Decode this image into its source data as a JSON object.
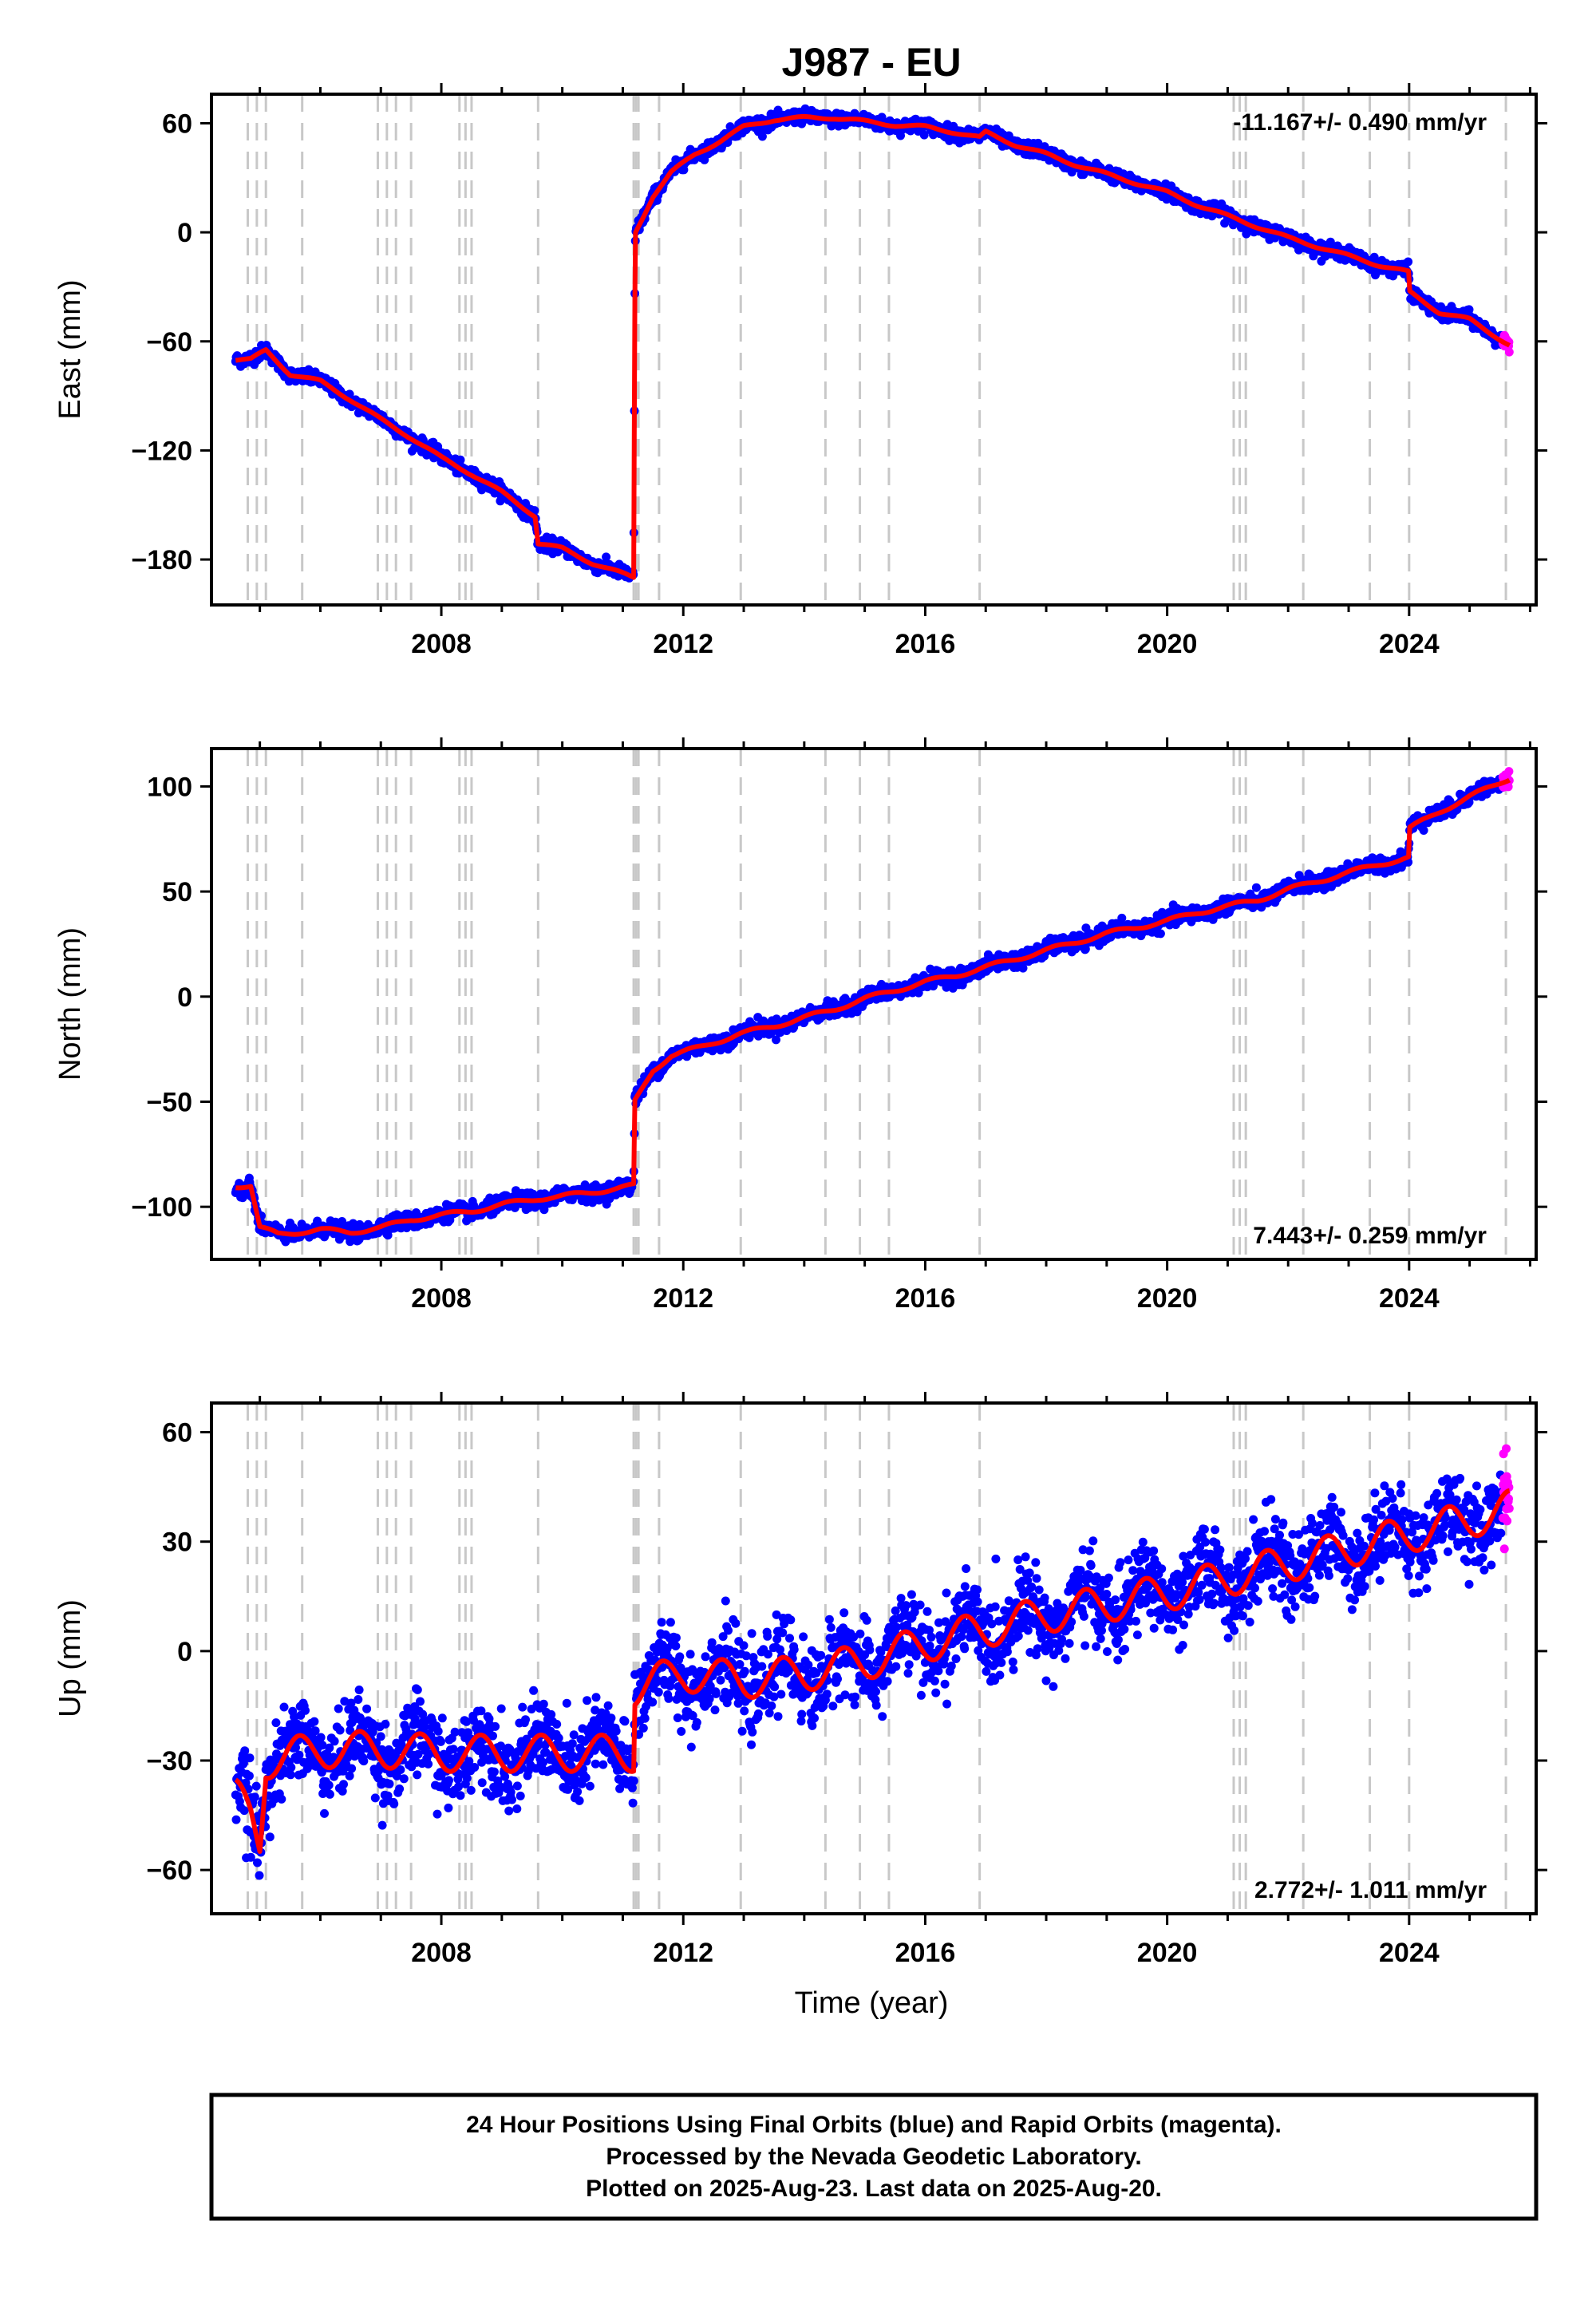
{
  "chart_title": "J987 - EU",
  "xlabel": "Time (year)",
  "colors": {
    "final_orbits": "#0000ff",
    "rapid_orbits": "#ff00ff",
    "model": "#ff0000",
    "event_lines": "#c8c8c8",
    "frame": "#000000"
  },
  "footer": {
    "line1": "24 Hour Positions Using Final Orbits (blue) and Rapid Orbits (magenta).",
    "line2": "Processed by the Nevada Geodetic Laboratory.",
    "line3": "Plotted on 2025-Aug-23. Last data on 2025-Aug-20."
  },
  "chart_data": [
    {
      "type": "scatter",
      "component": "East",
      "ylabel": "East (mm)",
      "rate_text": "-11.167+/- 0.490 mm/yr",
      "rate_position": "top-right",
      "xlim": [
        2004.2,
        2026.1
      ],
      "ylim": [
        -205,
        76
      ],
      "xticks": [
        2008,
        2012,
        2016,
        2020,
        2024
      ],
      "yticks": [
        60,
        0,
        -60,
        -120,
        -180
      ],
      "ytick_labels": [
        "60",
        "0",
        "−60",
        "−120",
        "−180"
      ],
      "event_lines": [
        2004.8,
        2004.95,
        2005.1,
        2005.7,
        2006.95,
        2007.1,
        2007.25,
        2007.5,
        2008.3,
        2008.4,
        2008.5,
        2009.6,
        2011.18,
        2011.22,
        2011.26,
        2011.6,
        2012.95,
        2014.35,
        2014.92,
        2015.4,
        2016.9,
        2021.1,
        2021.2,
        2021.3,
        2022.25,
        2023.35,
        2024.0,
        2025.6
      ],
      "model": {
        "breakpoints": [
          [
            2004.6,
            -70
          ],
          [
            2004.85,
            -70
          ],
          [
            2005.1,
            -65
          ],
          [
            2005.5,
            -78
          ],
          [
            2006.0,
            -82
          ],
          [
            2006.5,
            -92
          ],
          [
            2007.0,
            -103
          ],
          [
            2007.5,
            -113
          ],
          [
            2008.0,
            -124
          ],
          [
            2008.5,
            -133
          ],
          [
            2009.0,
            -143
          ],
          [
            2009.55,
            -156
          ],
          [
            2009.6,
            -171
          ],
          [
            2010.0,
            -174
          ],
          [
            2010.5,
            -182
          ],
          [
            2011.18,
            -190
          ],
          [
            2011.2,
            -35
          ],
          [
            2011.21,
            0
          ],
          [
            2011.5,
            20
          ],
          [
            2011.8,
            33
          ],
          [
            2012.2,
            43
          ],
          [
            2012.6,
            50
          ],
          [
            2013.0,
            58
          ],
          [
            2013.5,
            62
          ],
          [
            2014.0,
            63
          ],
          [
            2014.5,
            63
          ],
          [
            2015.0,
            61
          ],
          [
            2015.5,
            59
          ],
          [
            2016.0,
            58
          ],
          [
            2016.5,
            55
          ],
          [
            2016.9,
            52
          ],
          [
            2017.0,
            55
          ],
          [
            2017.5,
            48
          ],
          [
            2018.0,
            43
          ],
          [
            2018.5,
            37
          ],
          [
            2019.0,
            32
          ],
          [
            2019.5,
            27
          ],
          [
            2020.0,
            22
          ],
          [
            2020.5,
            15
          ],
          [
            2021.0,
            9
          ],
          [
            2021.5,
            3
          ],
          [
            2022.0,
            -3
          ],
          [
            2022.5,
            -8
          ],
          [
            2023.0,
            -13
          ],
          [
            2023.5,
            -18
          ],
          [
            2023.99,
            -22
          ],
          [
            2024.01,
            -33
          ],
          [
            2024.5,
            -44
          ],
          [
            2025.0,
            -48
          ],
          [
            2025.66,
            -62
          ]
        ],
        "seasonal_amplitude": 0.8,
        "seasonal_phase": 0.3
      },
      "final_orbit_points": {
        "x_start": 2004.6,
        "x_end": 2025.55,
        "scatter_sd": 1.8
      },
      "rapid_orbit_points": {
        "x_start": 2025.55,
        "x_end": 2025.66,
        "scatter_sd": 1.5
      }
    },
    {
      "type": "scatter",
      "component": "North",
      "ylabel": "North (mm)",
      "rate_text": "7.443+/- 0.259 mm/yr",
      "rate_position": "bottom-right",
      "xlim": [
        2004.2,
        2026.1
      ],
      "ylim": [
        -125,
        118
      ],
      "xticks": [
        2008,
        2012,
        2016,
        2020,
        2024
      ],
      "yticks": [
        100,
        50,
        0,
        -50,
        -100
      ],
      "ytick_labels": [
        "100",
        "50",
        "0",
        "−50",
        "−100"
      ],
      "event_lines": [
        2004.8,
        2004.95,
        2005.1,
        2005.7,
        2006.95,
        2007.1,
        2007.25,
        2007.5,
        2008.3,
        2008.4,
        2008.5,
        2009.6,
        2011.18,
        2011.22,
        2011.26,
        2011.6,
        2012.95,
        2014.35,
        2014.92,
        2015.4,
        2016.9,
        2021.1,
        2021.2,
        2021.3,
        2022.25,
        2023.35,
        2024.0,
        2025.6
      ],
      "model": {
        "breakpoints": [
          [
            2004.6,
            -90
          ],
          [
            2004.85,
            -90
          ],
          [
            2005.0,
            -110
          ],
          [
            2005.3,
            -113
          ],
          [
            2006.0,
            -111
          ],
          [
            2006.5,
            -112
          ],
          [
            2007.0,
            -110
          ],
          [
            2007.5,
            -106
          ],
          [
            2008.0,
            -104
          ],
          [
            2008.5,
            -102
          ],
          [
            2009.0,
            -99
          ],
          [
            2009.6,
            -96
          ],
          [
            2010.0,
            -95
          ],
          [
            2010.5,
            -93
          ],
          [
            2011.18,
            -90
          ],
          [
            2011.2,
            -50
          ],
          [
            2011.5,
            -35
          ],
          [
            2011.8,
            -28
          ],
          [
            2012.3,
            -24
          ],
          [
            2012.9,
            -18
          ],
          [
            2013.5,
            -14
          ],
          [
            2014.0,
            -10
          ],
          [
            2014.5,
            -6
          ],
          [
            2015.0,
            -1
          ],
          [
            2015.5,
            3
          ],
          [
            2016.0,
            7
          ],
          [
            2016.5,
            10
          ],
          [
            2017.0,
            14
          ],
          [
            2017.5,
            18
          ],
          [
            2018.0,
            22
          ],
          [
            2018.5,
            26
          ],
          [
            2019.0,
            30
          ],
          [
            2019.5,
            33
          ],
          [
            2020.0,
            36
          ],
          [
            2020.5,
            40
          ],
          [
            2021.0,
            43
          ],
          [
            2021.5,
            46
          ],
          [
            2022.0,
            51
          ],
          [
            2022.5,
            55
          ],
          [
            2023.0,
            59
          ],
          [
            2023.5,
            63
          ],
          [
            2023.99,
            66
          ],
          [
            2024.01,
            80
          ],
          [
            2024.5,
            88
          ],
          [
            2025.0,
            95
          ],
          [
            2025.66,
            104
          ]
        ],
        "seasonal_amplitude": 1.0,
        "seasonal_phase": 0.1
      },
      "final_orbit_points": {
        "x_start": 2004.6,
        "x_end": 2025.55,
        "scatter_sd": 1.8
      },
      "rapid_orbit_points": {
        "x_start": 2025.55,
        "x_end": 2025.66,
        "scatter_sd": 2.0
      }
    },
    {
      "type": "scatter",
      "component": "Up",
      "ylabel": "Up (mm)",
      "rate_text": "2.772+/- 1.011 mm/yr",
      "rate_position": "bottom-right",
      "xlim": [
        2004.2,
        2026.1
      ],
      "ylim": [
        -72,
        68
      ],
      "xticks": [
        2008,
        2012,
        2016,
        2020,
        2024
      ],
      "yticks": [
        60,
        30,
        0,
        -30,
        -60
      ],
      "ytick_labels": [
        "60",
        "30",
        "0",
        "−30",
        "−60"
      ],
      "event_lines": [
        2004.8,
        2004.95,
        2005.1,
        2005.7,
        2006.95,
        2007.1,
        2007.25,
        2007.5,
        2008.3,
        2008.4,
        2008.5,
        2009.6,
        2011.18,
        2011.22,
        2011.26,
        2011.6,
        2012.95,
        2014.35,
        2014.92,
        2015.4,
        2016.9,
        2021.1,
        2021.2,
        2021.3,
        2022.25,
        2023.35,
        2024.0,
        2025.6
      ],
      "model": {
        "breakpoints": [
          [
            2004.6,
            -40
          ],
          [
            2004.85,
            -45
          ],
          [
            2005.0,
            -52
          ],
          [
            2005.1,
            -30
          ],
          [
            2006.0,
            -27
          ],
          [
            2007.0,
            -27
          ],
          [
            2008.0,
            -28
          ],
          [
            2009.0,
            -28
          ],
          [
            2010.0,
            -28
          ],
          [
            2011.18,
            -28
          ],
          [
            2011.2,
            -10
          ],
          [
            2012.0,
            -6
          ],
          [
            2013.0,
            -8
          ],
          [
            2014.0,
            -6
          ],
          [
            2015.0,
            -3
          ],
          [
            2016.0,
            2
          ],
          [
            2017.0,
            6
          ],
          [
            2018.0,
            10
          ],
          [
            2019.0,
            13
          ],
          [
            2020.0,
            16
          ],
          [
            2021.0,
            20
          ],
          [
            2022.0,
            24
          ],
          [
            2023.0,
            28
          ],
          [
            2024.0,
            32
          ],
          [
            2025.0,
            36
          ],
          [
            2025.66,
            39
          ]
        ],
        "seasonal_amplitude": 5.0,
        "seasonal_phase": 0.6
      },
      "final_orbit_points": {
        "x_start": 2004.6,
        "x_end": 2025.55,
        "scatter_sd": 5.5
      },
      "rapid_orbit_points": {
        "x_start": 2025.55,
        "x_end": 2025.66,
        "scatter_sd": 6.0
      }
    }
  ]
}
